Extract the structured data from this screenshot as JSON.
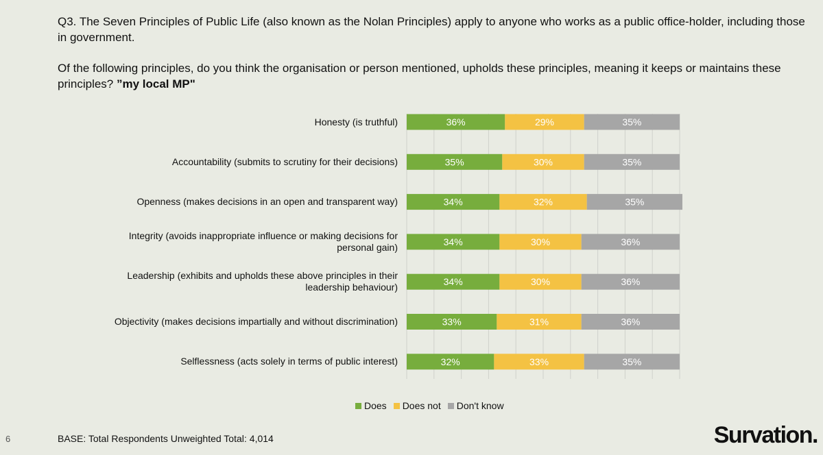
{
  "question": {
    "line1": "Q3. The Seven Principles of Public Life (also known as the Nolan Principles) apply to anyone who works as a public office-holder, including those in government.",
    "line2_text": "Of the following principles, do you think the organisation or person mentioned, upholds these principles, meaning it keeps or maintains these principles?",
    "line2_bold": "”my local MP\""
  },
  "colors": {
    "does": "#77ad3d",
    "does_not": "#f4c243",
    "dont_know": "#a6a6a6",
    "gridline": "#cfd1cb"
  },
  "chart_data": {
    "type": "bar",
    "orientation": "horizontal",
    "stacked": true,
    "stacked_to_100_percent": true,
    "title": "",
    "categories": [
      "Honesty (is truthful)",
      "Accountability (submits to scrutiny for their decisions)",
      "Openness (makes decisions in an open and transparent way)",
      "Integrity (avoids inappropriate influence or making decisions for personal gain)",
      "Leadership (exhibits and upholds these above principles in their leadership behaviour)",
      "Objectivity (makes decisions impartially and without discrimination)",
      "Selflessness (acts solely in terms of public interest)"
    ],
    "series": [
      {
        "name": "Does",
        "values": [
          36,
          35,
          34,
          34,
          34,
          33,
          32
        ]
      },
      {
        "name": "Does not",
        "values": [
          29,
          30,
          32,
          30,
          30,
          31,
          33
        ]
      },
      {
        "name": "Don't know",
        "values": [
          35,
          35,
          35,
          36,
          36,
          36,
          35
        ]
      }
    ],
    "value_suffix": "%",
    "xlim": [
      0,
      100
    ],
    "grid": true,
    "legend_position": "bottom"
  },
  "legend": {
    "does": "Does",
    "does_not": "Does not",
    "dont_know": "Don't know"
  },
  "footer": {
    "page_number": "6",
    "base_label": "BASE: Total Respondents Unweighted Total:",
    "base_value": "4,014"
  },
  "brand": "Survation."
}
